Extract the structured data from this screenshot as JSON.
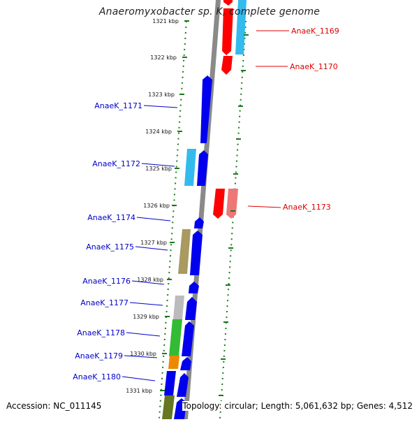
{
  "title": "Anaeromyxobacter sp. K, complete genome",
  "accession_text": "Accession: NC_011145",
  "topology_text": "Topology: circular; Length: 5,061,632 bp; Genes: 4,512",
  "colors": {
    "forward_label": "#0000cc",
    "reverse_label": "#dd0000",
    "backbone": "#8a8a8a",
    "tick": "#1a7a1a"
  },
  "kbp_ticks": [
    "1321 kbp",
    "1322 kbp",
    "1323 kbp",
    "1324 kbp",
    "1325 kbp",
    "1326 kbp",
    "1327 kbp",
    "1328 kbp",
    "1329 kbp",
    "1330 kbp",
    "1331 kbp"
  ],
  "gene_labels": [
    {
      "text": "AnaeK_1169",
      "strand": "reverse"
    },
    {
      "text": "AnaeK_1170",
      "strand": "reverse"
    },
    {
      "text": "AnaeK_1171",
      "strand": "forward"
    },
    {
      "text": "AnaeK_1172",
      "strand": "forward"
    },
    {
      "text": "AnaeK_1173",
      "strand": "reverse"
    },
    {
      "text": "AnaeK_1174",
      "strand": "forward"
    },
    {
      "text": "AnaeK_1175",
      "strand": "forward"
    },
    {
      "text": "AnaeK_1176",
      "strand": "forward"
    },
    {
      "text": "AnaeK_1177",
      "strand": "forward"
    },
    {
      "text": "AnaeK_1178",
      "strand": "forward"
    },
    {
      "text": "AnaeK_1179",
      "strand": "forward"
    },
    {
      "text": "AnaeK_1180",
      "strand": "forward"
    }
  ]
}
